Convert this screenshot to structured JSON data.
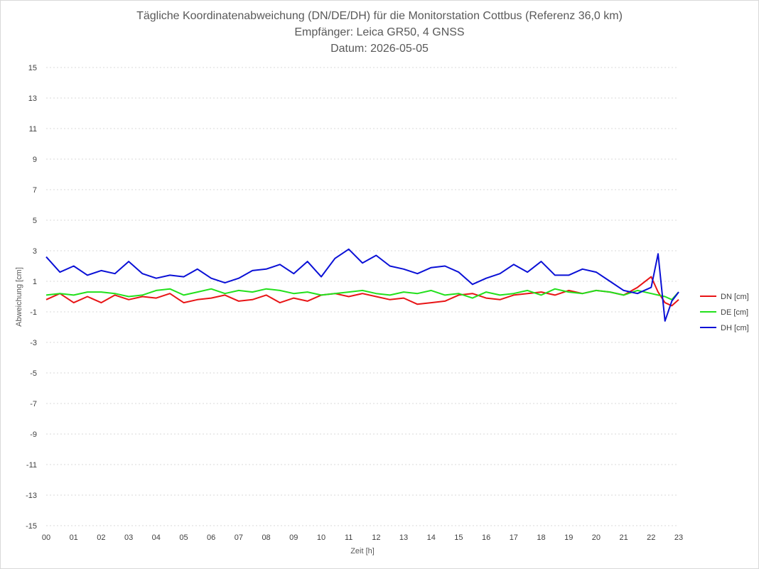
{
  "chart_data": {
    "type": "line",
    "title_lines": [
      "Tägliche Koordinatenabweichung (DN/DE/DH) für die Monitorstation Cottbus (Referenz 36,0 km)",
      "Empfänger: Leica GR50, 4 GNSS",
      "Datum: 2026-05-05"
    ],
    "xlabel": "Zeit [h]",
    "ylabel": "Abweichung [cm]",
    "xlim": [
      0,
      23
    ],
    "ylim": [
      -15,
      15
    ],
    "x_ticks": [
      "00",
      "01",
      "02",
      "03",
      "04",
      "05",
      "06",
      "07",
      "08",
      "09",
      "10",
      "11",
      "12",
      "13",
      "14",
      "15",
      "16",
      "17",
      "18",
      "19",
      "20",
      "21",
      "22",
      "23"
    ],
    "y_ticks": [
      15,
      13,
      11,
      9,
      7,
      5,
      3,
      1,
      -1,
      -3,
      -5,
      -7,
      -9,
      -11,
      -13,
      -15
    ],
    "grid": "horizontal dotted",
    "legend_position": "right",
    "x": [
      0,
      0.5,
      1,
      1.5,
      2,
      2.5,
      3,
      3.5,
      4,
      4.5,
      5,
      5.5,
      6,
      6.5,
      7,
      7.5,
      8,
      8.5,
      9,
      9.5,
      10,
      10.5,
      11,
      11.5,
      12,
      12.5,
      13,
      13.5,
      14,
      14.5,
      15,
      15.5,
      16,
      16.5,
      17,
      17.5,
      18,
      18.5,
      19,
      19.5,
      20,
      20.5,
      21,
      21.5,
      22,
      22.25,
      22.5,
      22.75,
      23
    ],
    "series": [
      {
        "name": "DN [cm]",
        "color": "#e81416",
        "values": [
          -0.2,
          0.2,
          -0.4,
          0,
          -0.4,
          0.1,
          -0.2,
          0,
          -0.1,
          0.2,
          -0.4,
          -0.2,
          -0.1,
          0.1,
          -0.3,
          -0.2,
          0.1,
          -0.4,
          -0.1,
          -0.3,
          0.1,
          0.2,
          0,
          0.2,
          0,
          -0.2,
          -0.1,
          -0.5,
          -0.4,
          -0.3,
          0.1,
          0.2,
          -0.1,
          -0.2,
          0.1,
          0.2,
          0.3,
          0.1,
          0.4,
          0.2,
          0.4,
          0.3,
          0.1,
          0.6,
          1.3,
          0.3,
          -0.4,
          -0.6,
          -0.2
        ]
      },
      {
        "name": "DE [cm]",
        "color": "#22e01c",
        "values": [
          0.1,
          0.2,
          0.1,
          0.3,
          0.3,
          0.2,
          0,
          0.1,
          0.4,
          0.5,
          0.1,
          0.3,
          0.5,
          0.2,
          0.4,
          0.3,
          0.5,
          0.4,
          0.2,
          0.3,
          0.1,
          0.2,
          0.3,
          0.4,
          0.2,
          0.1,
          0.3,
          0.2,
          0.4,
          0.1,
          0.2,
          -0.1,
          0.3,
          0.1,
          0.2,
          0.4,
          0.1,
          0.5,
          0.3,
          0.2,
          0.4,
          0.3,
          0.1,
          0.4,
          0.2,
          0.1,
          0,
          -0.2,
          0.3
        ]
      },
      {
        "name": "DH [cm]",
        "color": "#0a10d6",
        "values": [
          2.6,
          1.6,
          2,
          1.4,
          1.7,
          1.5,
          2.3,
          1.5,
          1.2,
          1.4,
          1.3,
          1.8,
          1.2,
          0.9,
          1.2,
          1.7,
          1.8,
          2.1,
          1.5,
          2.3,
          1.3,
          2.5,
          3.1,
          2.2,
          2.7,
          2,
          1.8,
          1.5,
          1.9,
          2,
          1.6,
          0.8,
          1.2,
          1.5,
          2.1,
          1.6,
          2.3,
          1.4,
          1.4,
          1.8,
          1.6,
          1,
          0.4,
          0.2,
          0.6,
          2.8,
          -1.6,
          -0.3,
          0.3
        ]
      }
    ]
  }
}
